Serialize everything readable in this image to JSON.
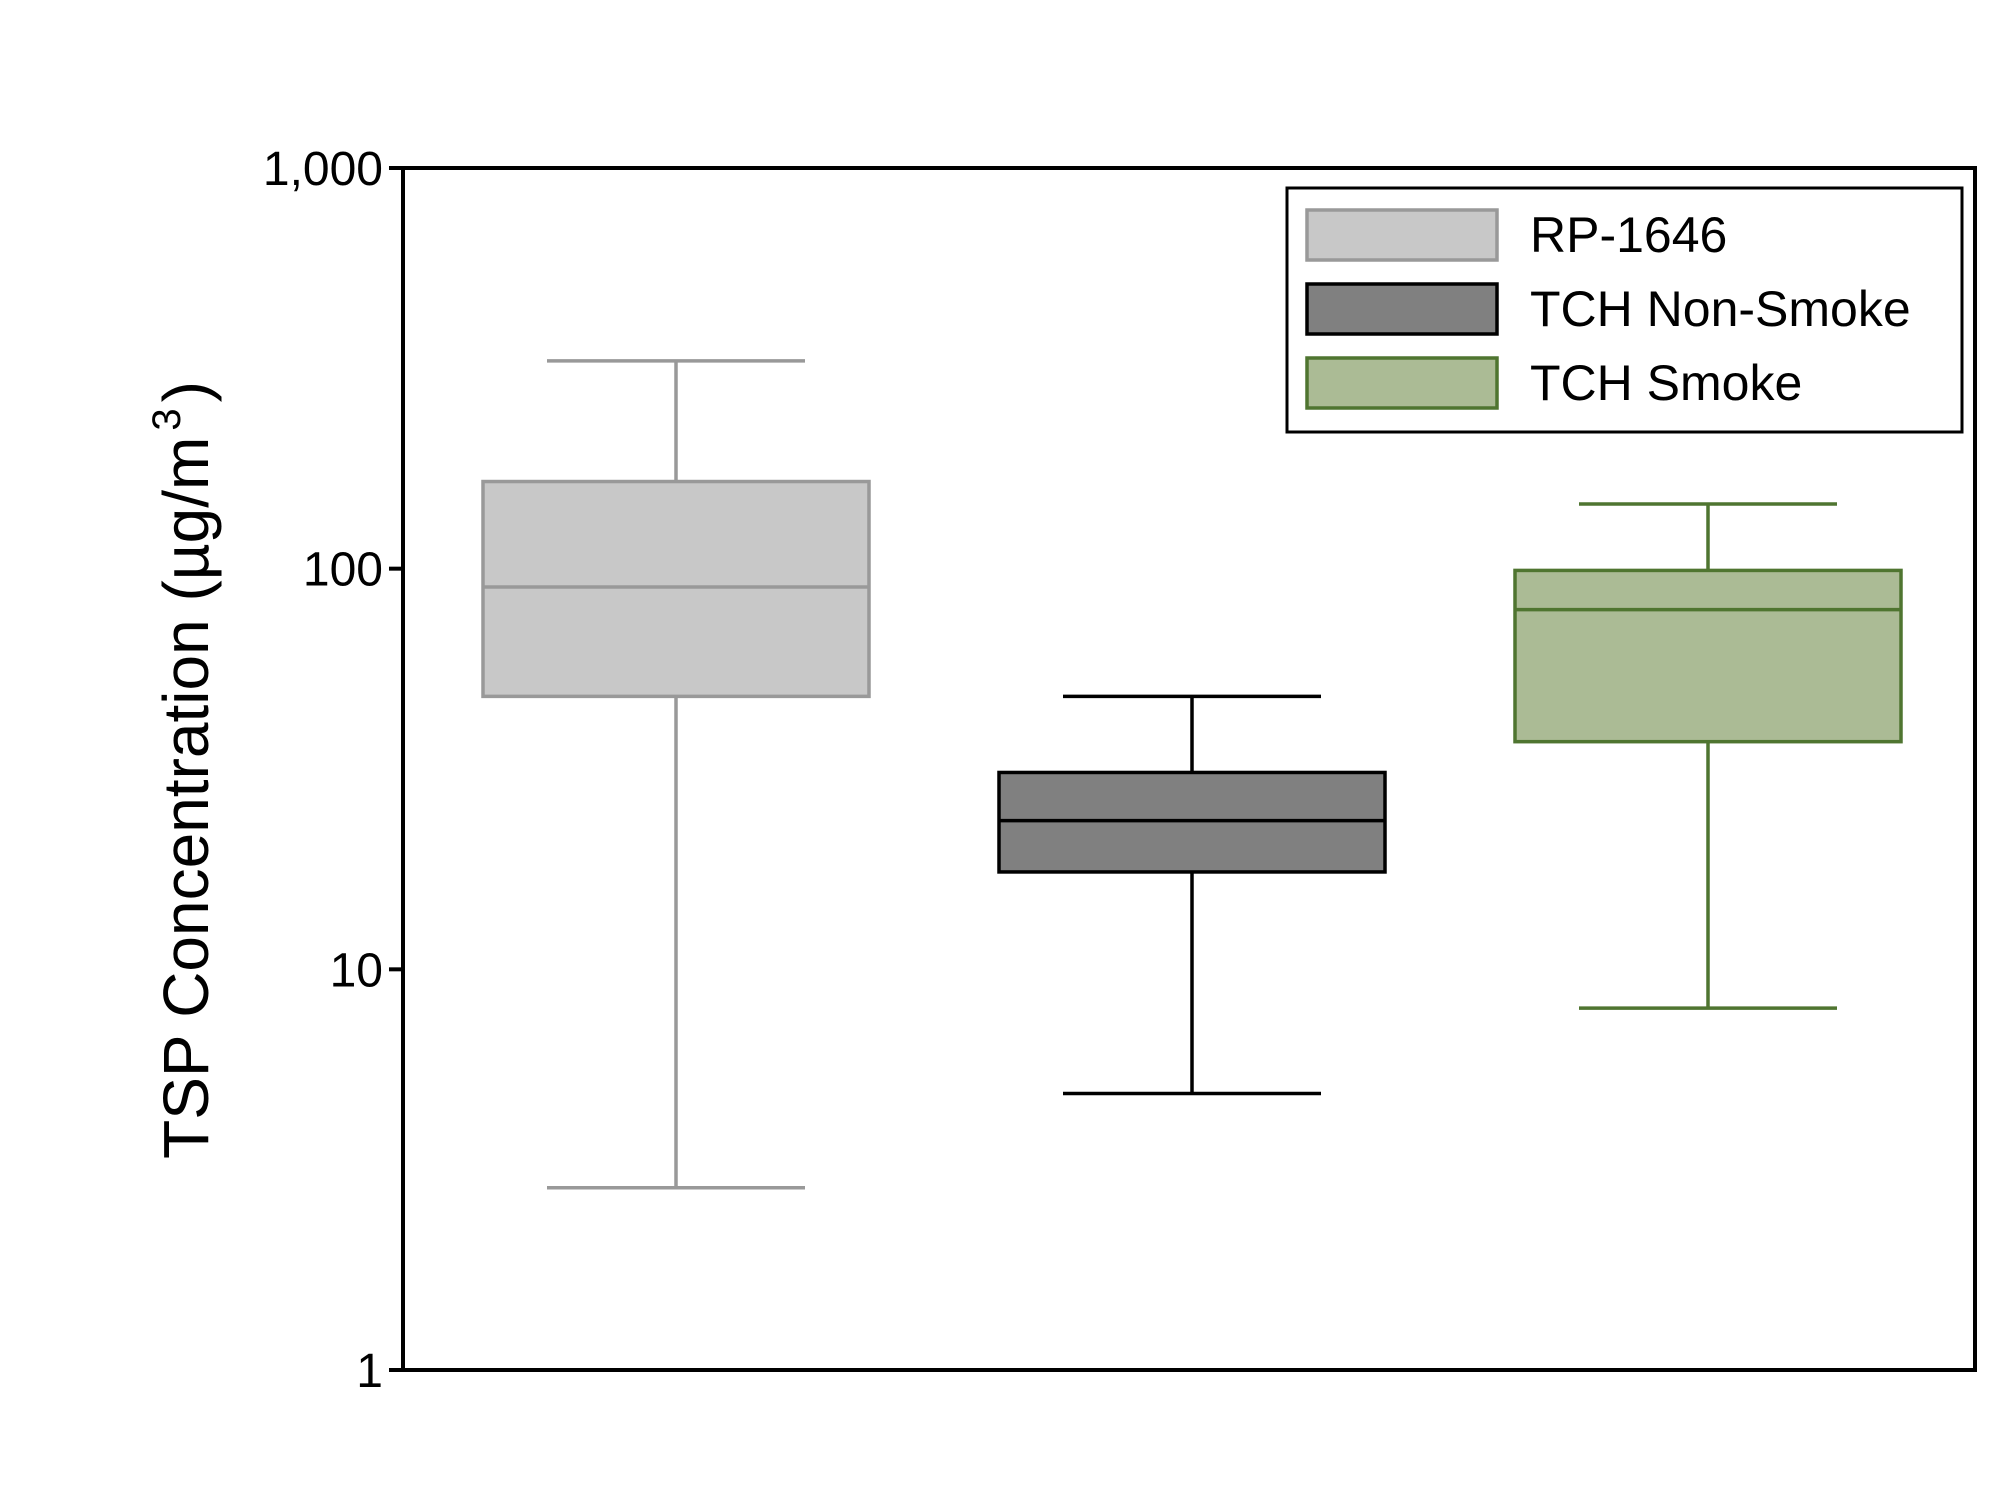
{
  "chart_data": {
    "type": "box",
    "y_scale": "log",
    "ylim": [
      1,
      1000
    ],
    "yticks": [
      1,
      10,
      100,
      1000
    ],
    "ytick_labels": [
      "1",
      "10",
      "100",
      "1,000"
    ],
    "ylabel_main": "TSP Concentration (µg/m",
    "ylabel_sup": "3",
    "ylabel_close": ")",
    "legend_position": "top-right",
    "series": [
      {
        "name": "RP-1646",
        "whisker_low": 2.85,
        "q1": 48,
        "median": 90,
        "q3": 165,
        "whisker_high": 330,
        "fill": "#c8c8c8",
        "stroke": "#999999"
      },
      {
        "name": "TCH Non-Smoke",
        "whisker_low": 4.9,
        "q1": 17.5,
        "median": 23.5,
        "q3": 31,
        "whisker_high": 48,
        "fill": "#808080",
        "stroke": "#000000"
      },
      {
        "name": "TCH Smoke",
        "whisker_low": 8.0,
        "q1": 37,
        "median": 79,
        "q3": 99,
        "whisker_high": 145,
        "fill": "#abbb95",
        "stroke": "#4f7530"
      }
    ]
  }
}
